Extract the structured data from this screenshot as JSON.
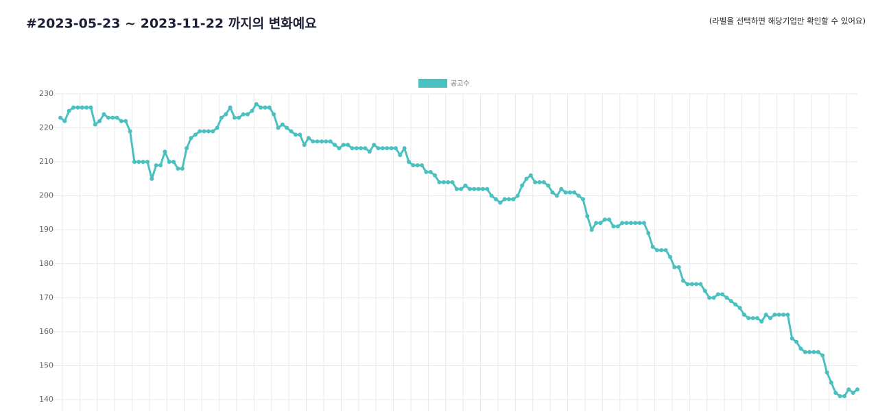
{
  "chart_data": {
    "type": "line",
    "title": "#2023-05-23 ~ 2023-11-22 까지의 변화예요",
    "note": "(라벨을 선택하면 해당기업만 확인할 수 있어요)",
    "categories": [
      null,
      null,
      null,
      null,
      null,
      null,
      null,
      null,
      null,
      null,
      null,
      null,
      null,
      null,
      null,
      null,
      null,
      null,
      null,
      null,
      null,
      null,
      null,
      null,
      null,
      null,
      null,
      null,
      null,
      null,
      null,
      null,
      null,
      null,
      null,
      null,
      null,
      null,
      null,
      null,
      null,
      null,
      null,
      null,
      null,
      null,
      null,
      null,
      null,
      null,
      null,
      null,
      null,
      null,
      null,
      null,
      null,
      null,
      null,
      null,
      null,
      null,
      null,
      null,
      null,
      null,
      null,
      null,
      null,
      null,
      null,
      null,
      null,
      null,
      null,
      null,
      null,
      null,
      null,
      null,
      null,
      null,
      null,
      null,
      null,
      null,
      null,
      null,
      null,
      null,
      null,
      null,
      null,
      null,
      null,
      null,
      null,
      null,
      null,
      null,
      null,
      null,
      null,
      null,
      null,
      null,
      null,
      null,
      null,
      null,
      null,
      null,
      null,
      null,
      null,
      null,
      null,
      null,
      null,
      null,
      null,
      null,
      null,
      null,
      null,
      null,
      null,
      null,
      null,
      null,
      null,
      null,
      null,
      null,
      null,
      null,
      null,
      null,
      null,
      null,
      null,
      null,
      null,
      null,
      null,
      null,
      null,
      null,
      null,
      null,
      null,
      null,
      null,
      null,
      null,
      null,
      null,
      null,
      null,
      null,
      null,
      null,
      null,
      null,
      null,
      null,
      null,
      null,
      null,
      null,
      null,
      null,
      null,
      null,
      null,
      null,
      null,
      null,
      null,
      null,
      null,
      null,
      null,
      null
    ],
    "series": [
      {
        "name": "공고수",
        "color": "#4bc0c0",
        "values": [
          223,
          222,
          225,
          226,
          226,
          226,
          226,
          226,
          221,
          222,
          224,
          223,
          223,
          223,
          222,
          222,
          219,
          210,
          210,
          210,
          210,
          205,
          209,
          209,
          213,
          210,
          210,
          208,
          208,
          214,
          217,
          218,
          219,
          219,
          219,
          219,
          220,
          223,
          224,
          226,
          223,
          223,
          224,
          224,
          225,
          227,
          226,
          226,
          226,
          224,
          220,
          221,
          220,
          219,
          218,
          218,
          215,
          217,
          216,
          216,
          216,
          216,
          216,
          215,
          214,
          215,
          215,
          214,
          214,
          214,
          214,
          213,
          215,
          214,
          214,
          214,
          214,
          214,
          212,
          214,
          210,
          209,
          209,
          209,
          207,
          207,
          206,
          204,
          204,
          204,
          204,
          202,
          202,
          203,
          202,
          202,
          202,
          202,
          202,
          200,
          199,
          198,
          199,
          199,
          199,
          200,
          203,
          205,
          206,
          204,
          204,
          204,
          203,
          201,
          200,
          202,
          201,
          201,
          201,
          200,
          199,
          194,
          190,
          192,
          192,
          193,
          193,
          191,
          191,
          192,
          192,
          192,
          192,
          192,
          192,
          189,
          185,
          184,
          184,
          184,
          182,
          179,
          179,
          175,
          174,
          174,
          174,
          174,
          172,
          170,
          170,
          171,
          171,
          170,
          169,
          168,
          167,
          165,
          164,
          164,
          164,
          163,
          165,
          164,
          165,
          165,
          165,
          165,
          158,
          157,
          155,
          154,
          154,
          154,
          154,
          153,
          148,
          145,
          142,
          141,
          141,
          143,
          142,
          143
        ]
      }
    ],
    "ylim": [
      140,
      230
    ],
    "yticks": [
      140,
      150,
      160,
      170,
      180,
      190,
      200,
      210,
      220,
      230
    ],
    "grid": true
  }
}
